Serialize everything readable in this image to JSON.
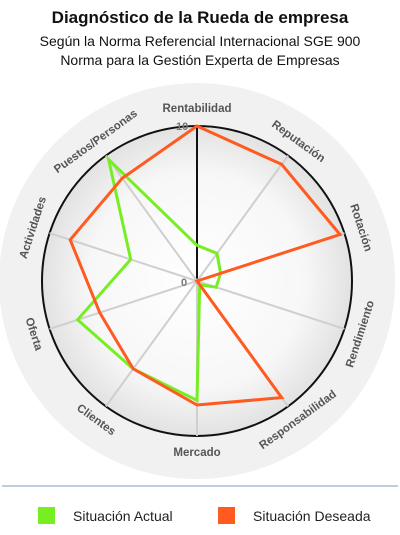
{
  "header": {
    "title": "Diagnóstico de la Rueda de empresa",
    "subtitle1": "Según la Norma Referencial Internacional  SGE 900",
    "subtitle2": "Norma para la Gestión Experta de Empresas"
  },
  "chart_data": {
    "type": "radar",
    "axes": [
      "Rentabilidad",
      "Reputación",
      "Rotación",
      "Rendimiento",
      "Responsabilidad",
      "Mercado",
      "Clientes",
      "Oferta",
      "Actividades",
      "Puestos/Personas"
    ],
    "tick_labels": {
      "min": "0",
      "max": "10"
    },
    "range": [
      0,
      10
    ],
    "grid": true,
    "legend_position": "bottom",
    "series": [
      {
        "name": "Situación Actual",
        "color": "#77ee22",
        "values": [
          2.3,
          2.2,
          1.6,
          1.3,
          0.3,
          7.7,
          7.0,
          8.1,
          4.5,
          9.7
        ]
      },
      {
        "name": "Situación Deseada",
        "color": "#ff5a1f",
        "values": [
          10,
          9.3,
          9.7,
          0,
          9.3,
          8.0,
          7.0,
          6.6,
          8.6,
          8.2
        ]
      }
    ]
  },
  "legend": {
    "items": [
      {
        "label": "Situación Actual",
        "color": "#77ee22"
      },
      {
        "label": "Situación Deseada",
        "color": "#ff5a1f"
      }
    ]
  }
}
